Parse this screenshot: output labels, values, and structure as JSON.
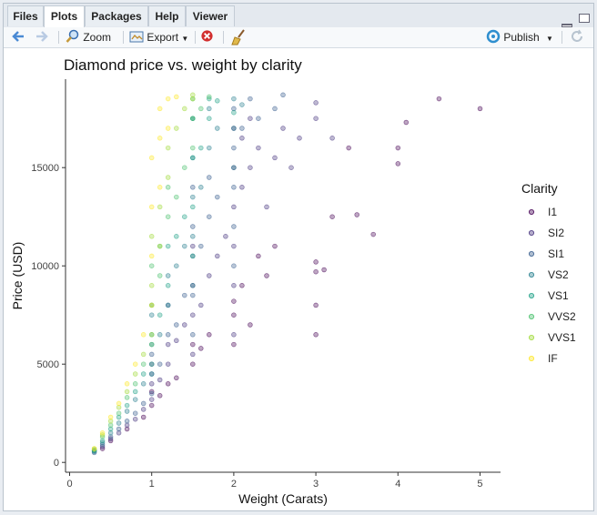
{
  "tabs": [
    {
      "label": "Files"
    },
    {
      "label": "Plots"
    },
    {
      "label": "Packages"
    },
    {
      "label": "Help"
    },
    {
      "label": "Viewer"
    }
  ],
  "toolbar": {
    "zoom_label": "Zoom",
    "export_label": "Export",
    "publish_label": "Publish"
  },
  "chart_data": {
    "type": "scatter",
    "title": "Diamond price vs. weight by clarity",
    "xlabel": "Weight (Carats)",
    "ylabel": "Price (USD)",
    "xlim": [
      -0.05,
      5.25
    ],
    "ylim": [
      -500,
      19500
    ],
    "xticks": [
      0,
      1,
      2,
      3,
      4,
      5
    ],
    "yticks": [
      0,
      5000,
      10000,
      15000
    ],
    "grid": false,
    "legend": {
      "title": "Clarity",
      "position": "right",
      "entries": [
        "I1",
        "SI2",
        "SI1",
        "VS2",
        "VS1",
        "VVS2",
        "VVS1",
        "IF"
      ]
    },
    "colors": {
      "I1": "#440154",
      "SI2": "#46337e",
      "SI1": "#365c8d",
      "VS2": "#277f8e",
      "VS1": "#1fa187",
      "VVS2": "#4ac16d",
      "VVS1": "#a0da39",
      "IF": "#fde725"
    },
    "series": [
      {
        "name": "I1",
        "points": [
          [
            0.4,
            700
          ],
          [
            0.5,
            1100
          ],
          [
            0.7,
            1700
          ],
          [
            0.9,
            2300
          ],
          [
            1.0,
            2900
          ],
          [
            1.0,
            3600
          ],
          [
            1.1,
            3400
          ],
          [
            1.2,
            4000
          ],
          [
            1.3,
            4300
          ],
          [
            1.5,
            5000
          ],
          [
            1.5,
            6000
          ],
          [
            1.6,
            5800
          ],
          [
            1.7,
            6500
          ],
          [
            2.0,
            6000
          ],
          [
            2.0,
            7500
          ],
          [
            2.0,
            8200
          ],
          [
            2.1,
            9000
          ],
          [
            2.2,
            7000
          ],
          [
            2.3,
            10500
          ],
          [
            2.4,
            9500
          ],
          [
            2.5,
            11000
          ],
          [
            3.0,
            6500
          ],
          [
            3.0,
            8000
          ],
          [
            3.0,
            9700
          ],
          [
            3.0,
            10200
          ],
          [
            3.1,
            9800
          ],
          [
            3.2,
            12500
          ],
          [
            3.4,
            16000
          ],
          [
            3.5,
            12600
          ],
          [
            3.7,
            11600
          ],
          [
            4.0,
            15200
          ],
          [
            4.0,
            16000
          ],
          [
            4.1,
            17300
          ],
          [
            4.5,
            18500
          ],
          [
            5.0,
            18000
          ]
        ]
      },
      {
        "name": "SI2",
        "points": [
          [
            0.3,
            600
          ],
          [
            0.4,
            800
          ],
          [
            0.5,
            1200
          ],
          [
            0.6,
            1500
          ],
          [
            0.7,
            1900
          ],
          [
            0.8,
            2200
          ],
          [
            0.9,
            2700
          ],
          [
            1.0,
            3200
          ],
          [
            1.0,
            4000
          ],
          [
            1.0,
            5000
          ],
          [
            1.1,
            4200
          ],
          [
            1.2,
            5000
          ],
          [
            1.2,
            6000
          ],
          [
            1.3,
            6200
          ],
          [
            1.4,
            7000
          ],
          [
            1.5,
            5500
          ],
          [
            1.5,
            7500
          ],
          [
            1.5,
            9000
          ],
          [
            1.5,
            11000
          ],
          [
            1.6,
            8000
          ],
          [
            1.7,
            9500
          ],
          [
            1.8,
            10500
          ],
          [
            1.9,
            11500
          ],
          [
            2.0,
            6500
          ],
          [
            2.0,
            9000
          ],
          [
            2.0,
            11000
          ],
          [
            2.0,
            13000
          ],
          [
            2.0,
            15000
          ],
          [
            2.0,
            17000
          ],
          [
            2.1,
            14000
          ],
          [
            2.1,
            16500
          ],
          [
            2.2,
            15000
          ],
          [
            2.2,
            17500
          ],
          [
            2.3,
            16000
          ],
          [
            2.4,
            13000
          ],
          [
            2.5,
            15500
          ],
          [
            2.6,
            17000
          ],
          [
            2.7,
            15000
          ],
          [
            2.8,
            16500
          ],
          [
            3.0,
            17500
          ],
          [
            3.0,
            18300
          ],
          [
            3.2,
            16500
          ]
        ]
      },
      {
        "name": "SI1",
        "points": [
          [
            0.3,
            500
          ],
          [
            0.4,
            900
          ],
          [
            0.5,
            1300
          ],
          [
            0.6,
            1700
          ],
          [
            0.7,
            2100
          ],
          [
            0.8,
            2500
          ],
          [
            0.9,
            3000
          ],
          [
            1.0,
            3500
          ],
          [
            1.0,
            4500
          ],
          [
            1.0,
            5500
          ],
          [
            1.1,
            5000
          ],
          [
            1.2,
            6500
          ],
          [
            1.2,
            8000
          ],
          [
            1.3,
            7000
          ],
          [
            1.4,
            8500
          ],
          [
            1.5,
            6500
          ],
          [
            1.5,
            8500
          ],
          [
            1.5,
            10500
          ],
          [
            1.5,
            12000
          ],
          [
            1.5,
            14000
          ],
          [
            1.6,
            11000
          ],
          [
            1.7,
            12500
          ],
          [
            1.7,
            14500
          ],
          [
            1.8,
            13500
          ],
          [
            2.0,
            10000
          ],
          [
            2.0,
            12000
          ],
          [
            2.0,
            14000
          ],
          [
            2.0,
            16000
          ],
          [
            2.0,
            18000
          ],
          [
            2.1,
            17000
          ],
          [
            2.2,
            18500
          ],
          [
            2.3,
            17500
          ],
          [
            2.5,
            18000
          ],
          [
            2.6,
            18700
          ]
        ]
      },
      {
        "name": "VS2",
        "points": [
          [
            0.3,
            550
          ],
          [
            0.4,
            1000
          ],
          [
            0.5,
            1500
          ],
          [
            0.6,
            2000
          ],
          [
            0.7,
            2600
          ],
          [
            0.8,
            3200
          ],
          [
            0.9,
            4000
          ],
          [
            1.0,
            4500
          ],
          [
            1.0,
            6000
          ],
          [
            1.0,
            7500
          ],
          [
            1.1,
            6500
          ],
          [
            1.2,
            8000
          ],
          [
            1.2,
            9500
          ],
          [
            1.3,
            10000
          ],
          [
            1.4,
            11000
          ],
          [
            1.5,
            9000
          ],
          [
            1.5,
            11500
          ],
          [
            1.5,
            13500
          ],
          [
            1.5,
            15500
          ],
          [
            1.5,
            17500
          ],
          [
            1.6,
            14000
          ],
          [
            1.7,
            16000
          ],
          [
            1.7,
            18000
          ],
          [
            1.8,
            17000
          ],
          [
            2.0,
            15000
          ],
          [
            2.0,
            17000
          ],
          [
            2.0,
            18500
          ],
          [
            2.1,
            18200
          ]
        ]
      },
      {
        "name": "VS1",
        "points": [
          [
            0.3,
            600
          ],
          [
            0.4,
            1100
          ],
          [
            0.5,
            1700
          ],
          [
            0.6,
            2300
          ],
          [
            0.7,
            2900
          ],
          [
            0.8,
            3600
          ],
          [
            0.9,
            4500
          ],
          [
            1.0,
            5000
          ],
          [
            1.0,
            6500
          ],
          [
            1.0,
            8000
          ],
          [
            1.1,
            7500
          ],
          [
            1.2,
            9000
          ],
          [
            1.2,
            11000
          ],
          [
            1.3,
            11500
          ],
          [
            1.4,
            12500
          ],
          [
            1.5,
            10500
          ],
          [
            1.5,
            13000
          ],
          [
            1.5,
            15500
          ],
          [
            1.5,
            17500
          ],
          [
            1.6,
            16000
          ],
          [
            1.7,
            17500
          ],
          [
            1.7,
            18500
          ],
          [
            1.8,
            18400
          ],
          [
            2.0,
            17800
          ]
        ]
      },
      {
        "name": "VVS2",
        "points": [
          [
            0.3,
            650
          ],
          [
            0.4,
            1300
          ],
          [
            0.5,
            1900
          ],
          [
            0.6,
            2500
          ],
          [
            0.7,
            3300
          ],
          [
            0.8,
            4000
          ],
          [
            0.9,
            5000
          ],
          [
            1.0,
            6000
          ],
          [
            1.0,
            8000
          ],
          [
            1.0,
            10000
          ],
          [
            1.1,
            9500
          ],
          [
            1.1,
            11000
          ],
          [
            1.2,
            12500
          ],
          [
            1.2,
            14000
          ],
          [
            1.3,
            13500
          ],
          [
            1.4,
            15000
          ],
          [
            1.5,
            16000
          ],
          [
            1.5,
            17500
          ],
          [
            1.5,
            18500
          ],
          [
            1.6,
            18000
          ],
          [
            1.7,
            18600
          ]
        ]
      },
      {
        "name": "VVS1",
        "points": [
          [
            0.3,
            700
          ],
          [
            0.4,
            1400
          ],
          [
            0.5,
            2100
          ],
          [
            0.6,
            2800
          ],
          [
            0.7,
            3600
          ],
          [
            0.8,
            4500
          ],
          [
            0.9,
            5500
          ],
          [
            1.0,
            6500
          ],
          [
            1.0,
            9000
          ],
          [
            1.0,
            11500
          ],
          [
            1.1,
            11000
          ],
          [
            1.1,
            13000
          ],
          [
            1.2,
            14500
          ],
          [
            1.2,
            16000
          ],
          [
            1.3,
            17000
          ],
          [
            1.4,
            18000
          ],
          [
            1.5,
            18500
          ],
          [
            1.5,
            18700
          ]
        ]
      },
      {
        "name": "IF",
        "points": [
          [
            0.3,
            700
          ],
          [
            0.4,
            1500
          ],
          [
            0.5,
            2300
          ],
          [
            0.6,
            3000
          ],
          [
            0.7,
            4000
          ],
          [
            0.8,
            5000
          ],
          [
            0.9,
            6500
          ],
          [
            1.0,
            8000
          ],
          [
            1.0,
            10500
          ],
          [
            1.0,
            13000
          ],
          [
            1.0,
            15500
          ],
          [
            1.1,
            14000
          ],
          [
            1.1,
            16500
          ],
          [
            1.1,
            18000
          ],
          [
            1.2,
            17000
          ],
          [
            1.2,
            18500
          ],
          [
            1.3,
            18600
          ]
        ]
      }
    ]
  }
}
